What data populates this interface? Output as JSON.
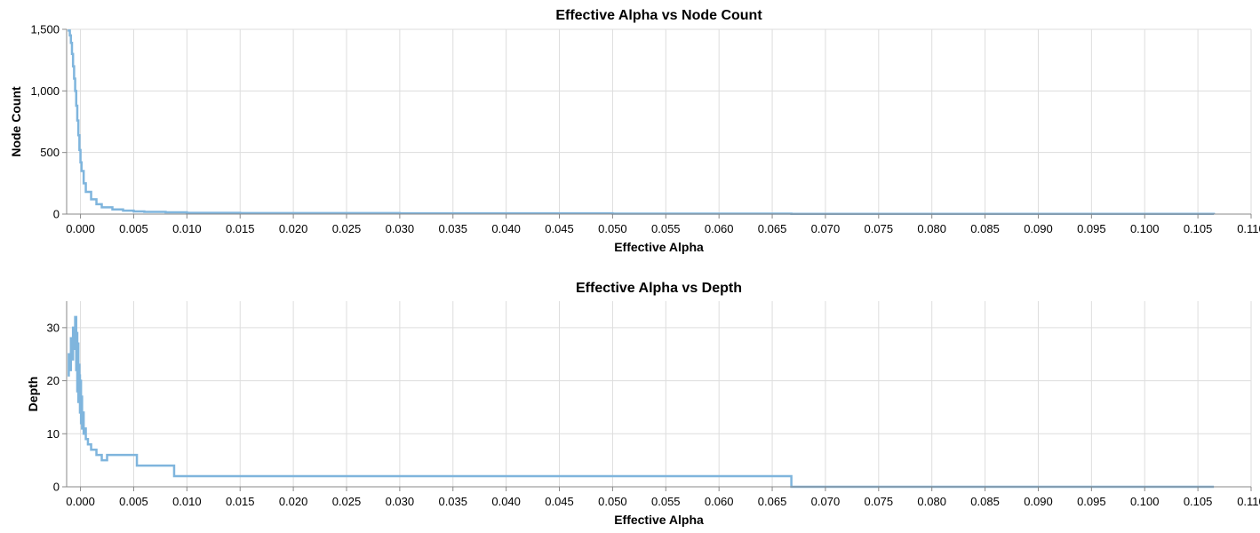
{
  "chart_data": [
    {
      "type": "line",
      "interpolation": "step",
      "title": "Effective Alpha vs Node Count",
      "xlabel": "Effective Alpha",
      "ylabel": "Node Count",
      "xlim": [
        -0.0013,
        0.11
      ],
      "ylim": [
        0,
        1500
      ],
      "x_ticks": [
        "0.000",
        "0.005",
        "0.010",
        "0.015",
        "0.020",
        "0.025",
        "0.030",
        "0.035",
        "0.040",
        "0.045",
        "0.050",
        "0.055",
        "0.060",
        "0.065",
        "0.070",
        "0.075",
        "0.080",
        "0.085",
        "0.090",
        "0.095",
        "0.100",
        "0.105",
        "0.110"
      ],
      "y_ticks": [
        "0",
        "500",
        "1,000",
        "1,500"
      ],
      "grid": true,
      "color": "#7fb5dd",
      "series": [
        {
          "x": [
            -0.0012,
            -0.001,
            -0.0009,
            -0.0008,
            -0.0007,
            -0.0006,
            -0.0005,
            -0.0004,
            -0.0003,
            -0.0002,
            -0.0001,
            0.0,
            0.0001,
            0.0003,
            0.0005,
            0.001,
            0.0015,
            0.002,
            0.003,
            0.004,
            0.005,
            0.006,
            0.008,
            0.01,
            0.015,
            0.03,
            0.05,
            0.0668,
            0.1065
          ],
          "y": [
            1490,
            1450,
            1390,
            1300,
            1200,
            1100,
            1000,
            880,
            760,
            640,
            520,
            420,
            350,
            250,
            180,
            120,
            80,
            55,
            38,
            28,
            22,
            18,
            14,
            10,
            8,
            6,
            4,
            2,
            0
          ]
        }
      ]
    },
    {
      "type": "line",
      "interpolation": "step",
      "title": "Effective Alpha vs Depth",
      "xlabel": "Effective Alpha",
      "ylabel": "Depth",
      "xlim": [
        -0.0013,
        0.11
      ],
      "ylim": [
        0,
        35
      ],
      "x_ticks": [
        "0.000",
        "0.005",
        "0.010",
        "0.015",
        "0.020",
        "0.025",
        "0.030",
        "0.035",
        "0.040",
        "0.045",
        "0.050",
        "0.055",
        "0.060",
        "0.065",
        "0.070",
        "0.075",
        "0.080",
        "0.085",
        "0.090",
        "0.095",
        "0.100",
        "0.105",
        "0.110"
      ],
      "y_ticks": [
        "0",
        "10",
        "20",
        "30"
      ],
      "grid": true,
      "color": "#7fb5dd",
      "series": [
        {
          "x": [
            -0.0012,
            -0.0011,
            -0.001,
            -0.0009,
            -0.0008,
            -0.0007,
            -0.0006,
            -0.0005,
            -0.0004,
            -0.00035,
            -0.0003,
            -0.00025,
            -0.0002,
            -0.00015,
            -0.0001,
            -5e-05,
            0.0,
            5e-05,
            0.0001,
            0.00015,
            0.0002,
            0.0003,
            0.0004,
            0.0005,
            0.0007,
            0.001,
            0.0015,
            0.002,
            0.0025,
            0.0053,
            0.0088,
            0.0668,
            0.1065
          ],
          "y": [
            21,
            25,
            22,
            28,
            24,
            30,
            26,
            32,
            22,
            29,
            18,
            27,
            16,
            23,
            21,
            14,
            20,
            12,
            17,
            11,
            14,
            10,
            11,
            9,
            8,
            7,
            6,
            5,
            6,
            4,
            2,
            0,
            0
          ]
        }
      ]
    }
  ]
}
